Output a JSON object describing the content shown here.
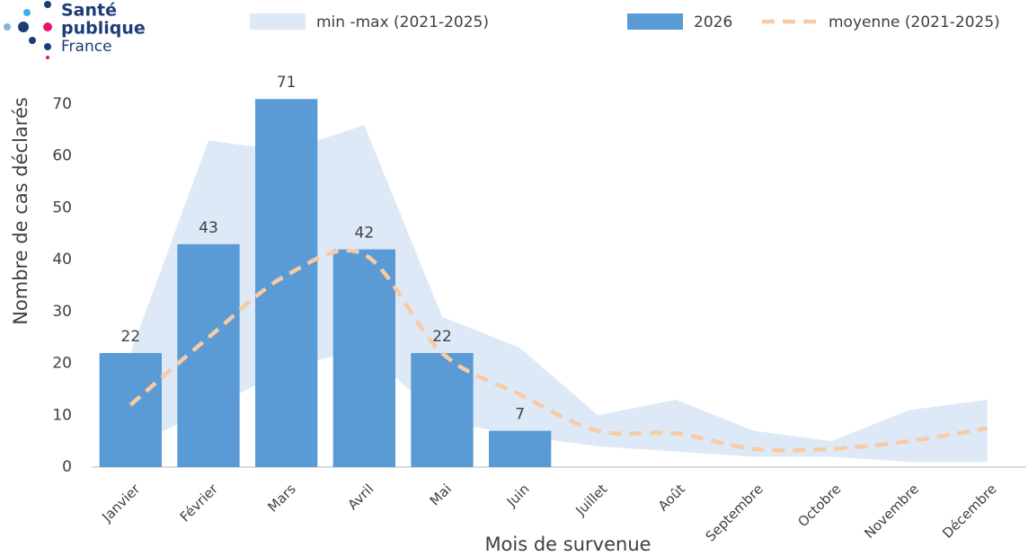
{
  "logo": {
    "line1": "Santé",
    "line2": "publique",
    "line3": "France"
  },
  "chart_data": {
    "type": "bar",
    "categories": [
      "Janvier",
      "Février",
      "Mars",
      "Avril",
      "Mai",
      "Juin",
      "Juillet",
      "Août",
      "Septembre",
      "Octobre",
      "Novembre",
      "Décembre"
    ],
    "series": [
      {
        "name": "min -max (2021-2025)",
        "type": "band",
        "color": "#dde9f6",
        "upper": [
          22,
          63,
          61,
          66,
          29,
          23,
          10,
          13,
          7,
          5,
          11,
          13
        ],
        "lower": [
          4,
          11,
          19,
          23,
          9,
          6,
          4,
          3,
          2,
          2,
          1,
          1
        ]
      },
      {
        "name": "2026",
        "type": "bar",
        "color": "#5b9bd5",
        "values": [
          22,
          43,
          71,
          42,
          22,
          7,
          null,
          null,
          null,
          null,
          null,
          null
        ]
      },
      {
        "name": "moyenne (2021-2025)",
        "type": "line",
        "color": "#f8cba5",
        "values": [
          12,
          25,
          37,
          41,
          22,
          14,
          7,
          6.5,
          3.5,
          3.5,
          5,
          7.5
        ]
      }
    ],
    "xlabel": "Mois de survenue",
    "ylabel": "Nombre de cas déclarés",
    "ylim": [
      0,
      70
    ],
    "yticks": [
      0,
      10,
      20,
      30,
      40,
      50,
      60,
      70
    ],
    "grid": false
  }
}
